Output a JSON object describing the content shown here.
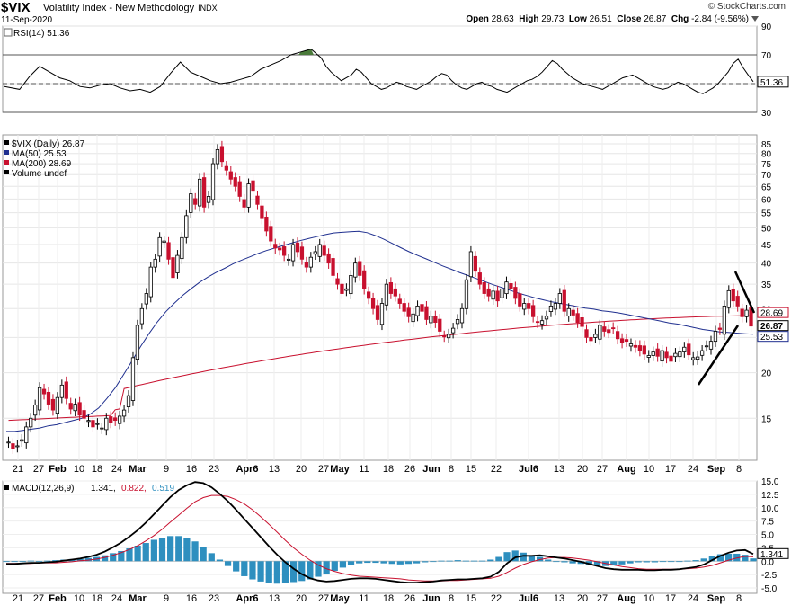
{
  "header": {
    "symbol": "$VIX",
    "name": "Volatility Index - New Methodology",
    "exchange": "INDX",
    "date": "11-Sep-2020",
    "logo": "© StockCharts.com",
    "open_label": "Open",
    "open": "28.63",
    "high_label": "High",
    "high": "29.73",
    "low_label": "Low",
    "low": "26.51",
    "close_label": "Close",
    "close": "26.87",
    "chg_label": "Chg",
    "chg": "-2.84 (-9.56%)"
  },
  "colors": {
    "up": "#000000",
    "down": "#c8102e",
    "ma50": "#1f2f8f",
    "ma200": "#c8102e",
    "hist": "#2e8fbf",
    "rsi_fill": "#4a7a3a"
  },
  "chart_data": [
    {
      "type": "line",
      "panel": "rsi",
      "title": "RSI(14) 51.36",
      "ylim": [
        30,
        90
      ],
      "ticks": [
        "90",
        "70",
        "50",
        "30"
      ],
      "current_label": "51.36",
      "x": [
        0,
        6,
        10,
        14,
        18,
        22,
        26,
        30,
        34,
        38,
        42,
        46,
        50,
        54,
        58,
        62,
        66,
        70,
        74,
        78,
        82,
        86,
        90,
        94,
        98,
        102,
        106,
        110,
        114,
        118,
        122,
        126,
        128,
        130,
        132,
        134,
        136,
        138,
        140,
        142,
        144,
        146,
        148,
        150,
        152,
        154,
        156,
        158,
        160,
        162,
        164,
        166,
        168,
        170,
        172,
        174,
        176,
        178,
        180,
        182,
        184,
        186,
        188,
        190,
        192,
        194,
        196,
        198,
        200,
        202,
        204,
        206,
        208,
        210,
        212,
        214,
        216,
        218,
        220,
        222,
        224,
        226,
        228,
        230,
        232,
        234,
        236,
        238,
        240,
        242,
        244,
        246,
        248,
        250,
        252,
        254,
        256,
        258,
        260,
        262,
        264,
        266,
        268,
        270,
        272,
        274,
        276,
        278,
        280,
        282,
        284,
        286,
        288,
        290,
        292,
        294,
        296,
        298
      ],
      "values": [
        48,
        46,
        55,
        62,
        58,
        54,
        52,
        48,
        47,
        49,
        50,
        47,
        45,
        46,
        44,
        48,
        57,
        65,
        58,
        55,
        52,
        50,
        51,
        53,
        55,
        60,
        63,
        66,
        70,
        72,
        74,
        68,
        62,
        58,
        55,
        52,
        54,
        56,
        60,
        58,
        54,
        50,
        48,
        46,
        47,
        49,
        51,
        50,
        48,
        47,
        46,
        48,
        50,
        52,
        55,
        57,
        56,
        52,
        49,
        47,
        46,
        48,
        50,
        51,
        49,
        48,
        46,
        45,
        44,
        46,
        48,
        50,
        52,
        53,
        55,
        58,
        62,
        66,
        64,
        60,
        57,
        54,
        52,
        50,
        49,
        48,
        47,
        46,
        48,
        50,
        52,
        54,
        55,
        56,
        54,
        52,
        50,
        48,
        47,
        46,
        47,
        49,
        51,
        50,
        48,
        46,
        44,
        43,
        45,
        47,
        50,
        54,
        58,
        64,
        67,
        61,
        56,
        51.36
      ]
    },
    {
      "type": "candlestick",
      "panel": "price",
      "title": "$VIX (Daily) 26.87",
      "legend": [
        "$VIX (Daily) 26.87",
        "MA(50) 25.53",
        "MA(200) 28.69",
        "Volume undef"
      ],
      "yscale": "log",
      "ylim": [
        11.5,
        90
      ],
      "ticks": [
        "85",
        "80",
        "75",
        "70",
        "65",
        "60",
        "55",
        "50",
        "45",
        "40",
        "35",
        "30",
        "25",
        "20",
        "15"
      ],
      "current_labels": [
        "28.69",
        "26.87",
        "25.53"
      ],
      "x_labels": [
        "21",
        "27",
        "Feb",
        "10",
        "18",
        "24",
        "Mar",
        "9",
        "16",
        "23",
        "Apr6",
        "13",
        "20",
        "27",
        "May",
        "11",
        "18",
        "26",
        "Jun",
        "8",
        "15",
        "22",
        "Jul6",
        "13",
        "20",
        "27",
        "Aug",
        "10",
        "17",
        "24",
        "Sep",
        "8"
      ],
      "closes": [
        12.9,
        12.4,
        12.6,
        13.1,
        14.2,
        15.0,
        16.3,
        18.2,
        17.5,
        16.4,
        15.8,
        17.1,
        18.5,
        17.0,
        15.9,
        16.4,
        15.3,
        15.0,
        14.8,
        14.2,
        14.5,
        14.1,
        15.0,
        14.6,
        14.8,
        15.2,
        15.8,
        17.3,
        22.0,
        27.0,
        30.0,
        33.0,
        39.0,
        41.0,
        47.0,
        46.0,
        41.0,
        36.5,
        42.0,
        47.0,
        54.0,
        62.0,
        58.0,
        68.0,
        57.0,
        61.0,
        75.0,
        82.0,
        76.0,
        72.0,
        68.0,
        65.0,
        61.0,
        57.0,
        66.0,
        63.0,
        58.0,
        53.0,
        49.0,
        46.0,
        44.0,
        43.5,
        42.0,
        41.0,
        45.0,
        43.0,
        41.0,
        39.0,
        41.5,
        43.0,
        45.0,
        42.0,
        40.0,
        37.0,
        35.0,
        33.0,
        34.0,
        37.0,
        40.0,
        37.0,
        34.0,
        32.0,
        30.0,
        28.0,
        31.0,
        35.0,
        33.0,
        32.5,
        31.0,
        29.5,
        28.5,
        29.0,
        30.5,
        29.5,
        28.0,
        28.6,
        27.5,
        26.0,
        25.2,
        25.5,
        26.5,
        28.0,
        30.0,
        36.0,
        43.0,
        38.0,
        35.0,
        33.0,
        32.5,
        33.5,
        31.5,
        34.0,
        35.5,
        34.0,
        32.0,
        30.5,
        31.0,
        30.0,
        28.5,
        27.5,
        27.8,
        28.6,
        30.5,
        31.0,
        33.0,
        29.5,
        30.0,
        28.8,
        27.5,
        26.8,
        25.0,
        24.5,
        25.5,
        27.0,
        26.0,
        25.8,
        26.5,
        24.8,
        24.2,
        24.4,
        24.0,
        23.5,
        23.0,
        22.5,
        22.3,
        22.8,
        22.2,
        23.0,
        22.0,
        21.5,
        22.6,
        22.8,
        23.5,
        22.4,
        22.0,
        22.1,
        23.0,
        23.7,
        24.4,
        26.0,
        26.3,
        30.5,
        33.6,
        31.5,
        30.5,
        28.5,
        29.7,
        26.87
      ],
      "ma50": [
        13.8,
        13.8,
        13.9,
        14.0,
        14.1,
        14.3,
        14.4,
        14.6,
        14.8,
        15.0,
        15.4,
        16.0,
        17.0,
        18.2,
        19.8,
        21.6,
        23.6,
        25.6,
        27.6,
        29.4,
        31.0,
        32.6,
        34.0,
        35.4,
        36.6,
        37.7,
        38.7,
        39.8,
        40.7,
        41.6,
        42.5,
        43.3,
        44.0,
        44.7,
        45.4,
        46.1,
        46.7,
        47.3,
        47.9,
        48.4,
        48.6,
        48.8,
        48.9,
        48.5,
        47.6,
        46.5,
        45.3,
        44.1,
        43.0,
        42.0,
        41.1,
        40.2,
        39.3,
        38.5,
        37.7,
        37.0,
        36.3,
        35.6,
        34.9,
        34.3,
        33.7,
        33.1,
        32.6,
        32.1,
        31.7,
        31.3,
        31.0,
        30.7,
        30.4,
        30.1,
        29.9,
        29.6,
        29.4,
        29.2,
        28.9,
        28.6,
        28.3,
        28.0,
        27.7,
        27.4,
        27.2,
        26.9,
        26.6,
        26.3,
        26.1,
        25.9,
        25.8,
        25.7,
        25.6,
        25.53
      ]
    },
    {
      "type": "line",
      "panel": "macd",
      "title": "MACD(12,26,9) 1.341, 0.822, 0.519",
      "legend": [
        "MACD(12,26,9)",
        "1.341,",
        "0.822,",
        "0.519"
      ],
      "ylim": [
        -6,
        15
      ],
      "ticks": [
        "15.0",
        "12.5",
        "10.0",
        "7.5",
        "5.0",
        "2.5",
        "0.0",
        "-2.5",
        "-5.0"
      ],
      "current_labels": [
        "1.341"
      ],
      "macd": [
        -0.5,
        -0.5,
        -0.4,
        -0.3,
        -0.3,
        -0.2,
        -0.1,
        0.1,
        0.3,
        0.5,
        0.8,
        1.2,
        1.8,
        2.6,
        3.5,
        4.6,
        5.8,
        7.2,
        8.8,
        10.4,
        12.0,
        13.3,
        14.2,
        14.8,
        14.6,
        13.8,
        12.6,
        11.2,
        9.6,
        7.9,
        6.2,
        4.5,
        2.8,
        1.2,
        -0.2,
        -1.4,
        -2.4,
        -3.2,
        -3.6,
        -3.8,
        -3.7,
        -3.5,
        -3.3,
        -3.2,
        -3.2,
        -3.3,
        -3.5,
        -3.7,
        -3.9,
        -4.0,
        -4.0,
        -3.9,
        -3.8,
        -3.6,
        -3.5,
        -3.4,
        -3.4,
        -3.3,
        -3.2,
        -2.9,
        -2.0,
        -0.4,
        0.7,
        1.0,
        1.0,
        1.1,
        0.9,
        0.7,
        0.5,
        0.2,
        -0.1,
        -0.5,
        -0.9,
        -1.3,
        -1.5,
        -1.6,
        -1.6,
        -1.6,
        -1.7,
        -1.7,
        -1.6,
        -1.6,
        -1.5,
        -1.3,
        -1.1,
        -0.6,
        0.2,
        1.0,
        1.6,
        2.0,
        2.1,
        1.341
      ],
      "signal": [
        -0.4,
        -0.4,
        -0.4,
        -0.4,
        -0.3,
        -0.3,
        -0.3,
        -0.2,
        -0.1,
        0.1,
        0.2,
        0.4,
        0.7,
        1.1,
        1.6,
        2.2,
        2.9,
        3.8,
        4.8,
        6.0,
        7.3,
        8.6,
        9.9,
        11.1,
        11.9,
        12.3,
        12.3,
        12.1,
        11.5,
        10.7,
        9.6,
        8.3,
        6.9,
        5.4,
        3.9,
        2.5,
        1.3,
        0.2,
        -0.7,
        -1.4,
        -1.9,
        -2.3,
        -2.6,
        -2.8,
        -2.9,
        -3.0,
        -3.1,
        -3.2,
        -3.3,
        -3.5,
        -3.6,
        -3.7,
        -3.7,
        -3.7,
        -3.6,
        -3.6,
        -3.5,
        -3.4,
        -3.3,
        -3.2,
        -2.8,
        -2.1,
        -1.3,
        -0.6,
        -0.1,
        0.3,
        0.6,
        0.7,
        0.7,
        0.6,
        0.4,
        0.2,
        -0.1,
        -0.4,
        -0.7,
        -1.0,
        -1.2,
        -1.4,
        -1.5,
        -1.5,
        -1.5,
        -1.5,
        -1.5,
        -1.4,
        -1.3,
        -1.1,
        -0.8,
        -0.3,
        0.2,
        0.6,
        0.9,
        0.822
      ]
    }
  ]
}
